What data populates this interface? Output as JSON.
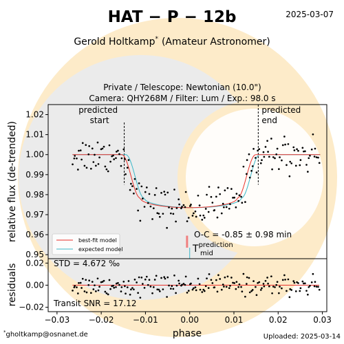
{
  "header": {
    "title": "HAT − P − 12b",
    "date": "2025-03-07",
    "observer_name": "Gerold Holtkamp",
    "observer_sup": "*",
    "observer_role": "(Amateur Astronomer)",
    "subtitle_line1": "Private / Telescope: Newtonian (10.0\")",
    "subtitle_line2": "Camera: QHY268M / Filter: Lum / Exp.: 98.0 s"
  },
  "footer": {
    "email_sup": "*",
    "email": "gholtkamp@osnanet.de",
    "uploaded": "Uploaded: 2025-03-14"
  },
  "colors": {
    "watermark_ring": "#fdebc9",
    "watermark_disk": "#ebebeb",
    "best_fit": "#e8312a",
    "expected": "#3ab8c9",
    "oc_bar": "#f08080",
    "points": "#000000"
  },
  "chart_data": [
    {
      "type": "scatter",
      "panel": "main",
      "ylabel": "relative flux (de-trended)",
      "xlim": [
        -0.032,
        0.031
      ],
      "ylim": [
        0.948,
        1.025
      ],
      "yticks": [
        0.95,
        0.96,
        0.97,
        0.98,
        0.99,
        1.0,
        1.01,
        1.02
      ],
      "ytick_labels": [
        "0.95",
        "0.96",
        "0.97",
        "0.98",
        "0.99",
        "1.00",
        "1.01",
        "1.02"
      ],
      "predicted_start": -0.0148,
      "predicted_end": 0.0155,
      "predicted_start_label": [
        "predicted",
        "start"
      ],
      "predicted_end_label": [
        "predicted",
        "end"
      ],
      "transit_depth": 0.0265,
      "transit_mid": 0.0003,
      "legend": [
        "best-fit model",
        "expected model"
      ],
      "oc_text": "O-C = -0.85 ± 0.98 min",
      "tmid_symbol": "T",
      "tmid_sup": "prediction",
      "tmid_sub": "mid",
      "tmid_phase": 0.0,
      "oc_phase": -0.0006,
      "points_phase_range": [
        -0.0265,
        0.0293
      ],
      "points_count": 190,
      "noise_std": 0.0047
    },
    {
      "type": "scatter",
      "panel": "residuals",
      "ylabel": "residuals",
      "xlabel": "phase",
      "xlim": [
        -0.032,
        0.031
      ],
      "ylim": [
        -0.024,
        0.024
      ],
      "xticks": [
        -0.03,
        -0.02,
        -0.01,
        0.0,
        0.01,
        0.02,
        0.03
      ],
      "xtick_labels": [
        "−0.03",
        "−0.02",
        "−0.01",
        "0.00",
        "0.01",
        "0.02",
        "0.03"
      ],
      "yticks": [
        -0.02,
        0.0,
        0.02
      ],
      "ytick_labels": [
        "−0.02",
        "0.00",
        "0.02"
      ],
      "std_text": "STD = 4.672 ‰",
      "snr_text": "Transit SNR = 17.12"
    }
  ]
}
